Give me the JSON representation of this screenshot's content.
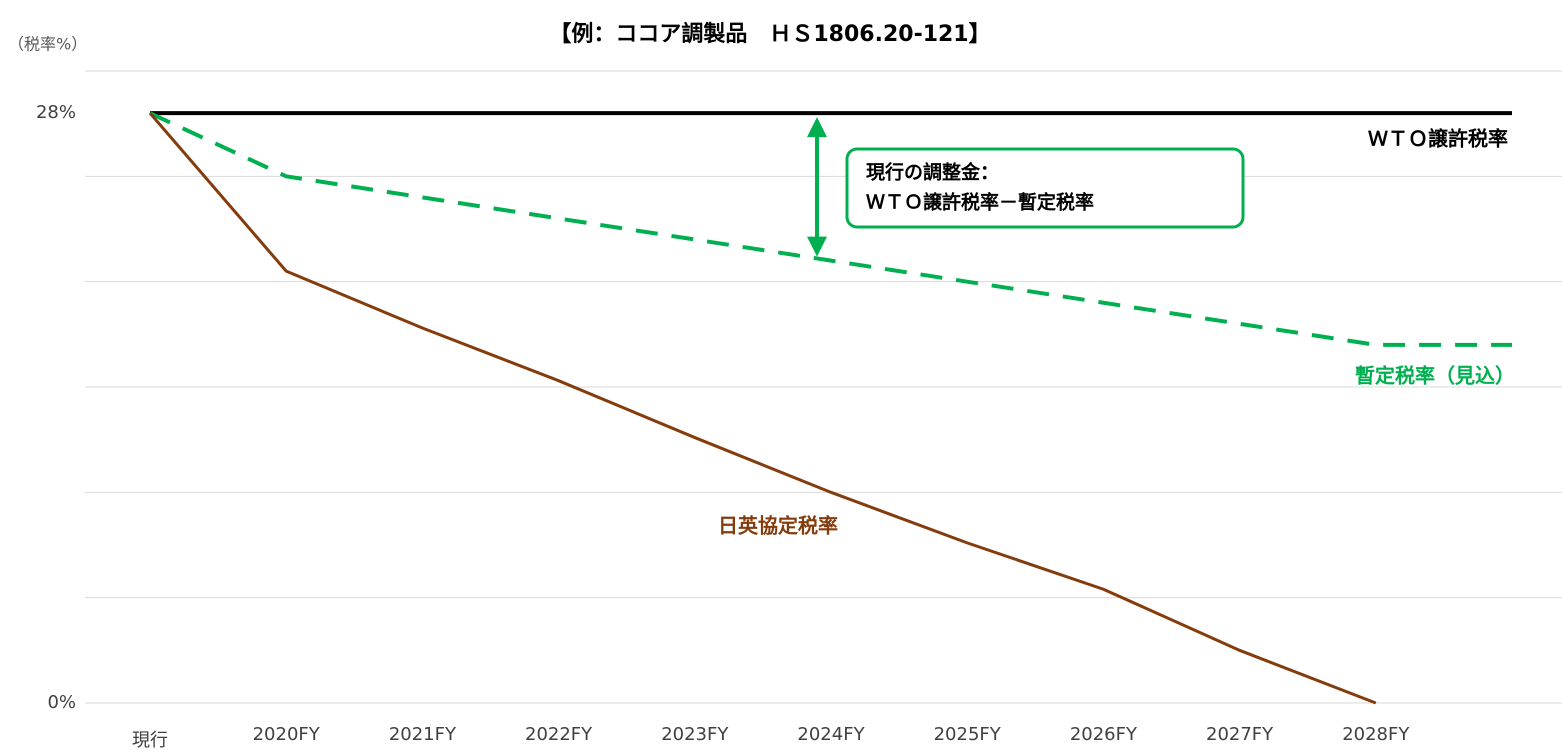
{
  "chart_data": {
    "type": "line",
    "title": "【例：ココア調製品　ＨＳ1806.20-121】",
    "y_label": "（税率%）",
    "categories": [
      "現行",
      "2020FY",
      "2021FY",
      "2022FY",
      "2023FY",
      "2024FY",
      "2025FY",
      "2026FY",
      "2027FY",
      "2028FY",
      null
    ],
    "series": [
      {
        "name": "ＷＴＯ譲許税率",
        "color": "#000000",
        "dashed": false,
        "values": [
          28,
          28,
          28,
          28,
          28,
          28,
          28,
          28,
          28,
          28,
          28
        ]
      },
      {
        "name": "暫定税率（見込）",
        "color": "#00b050",
        "dashed": true,
        "values": [
          28,
          25,
          24,
          23,
          22,
          21,
          20,
          19,
          18,
          17,
          17
        ]
      },
      {
        "name": "日英協定税率",
        "color": "#843c0c",
        "dashed": false,
        "values": [
          28,
          20.5,
          17.8,
          15.3,
          12.6,
          10,
          7.6,
          5.4,
          2.5,
          0,
          null
        ]
      }
    ],
    "annotations": [
      "現行の調整金：",
      "ＷＴＯ譲許税率－暫定税率"
    ],
    "annotation_color": "#00b050",
    "ylim": [
      0,
      30
    ],
    "yticks": [
      {
        "value": 0,
        "label": "0%"
      },
      {
        "value": 28,
        "label": "28%"
      }
    ],
    "ygrid": [
      0,
      5,
      10,
      15,
      20,
      25,
      30
    ],
    "grid": true
  }
}
